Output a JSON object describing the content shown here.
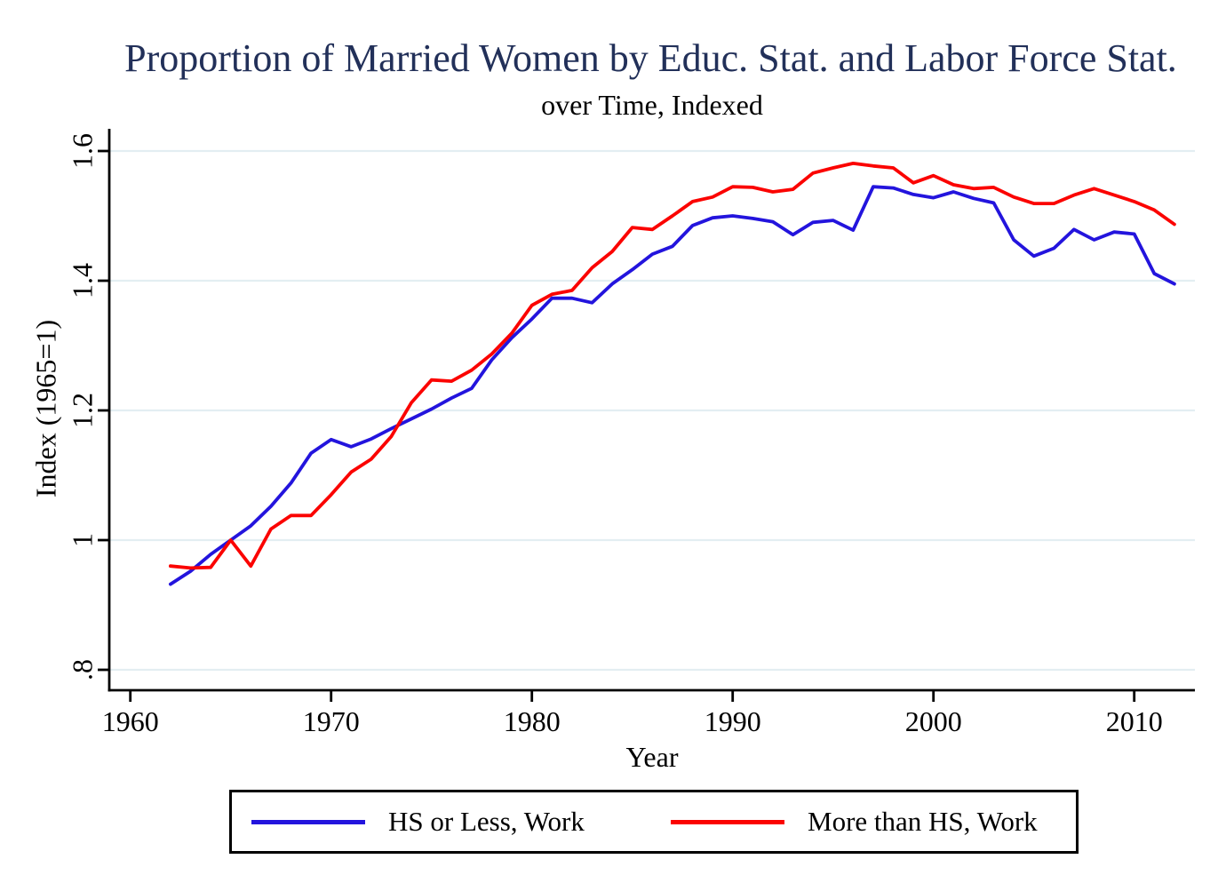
{
  "header": {
    "title": "Proportion of Married Women by Educ. Stat. and Labor Force Stat.",
    "subtitle": "over Time, Indexed"
  },
  "colors": {
    "title_text": "#223059",
    "axis": "#000000",
    "gridline": "#e3eef2",
    "hs_or_less": "#2314dd",
    "more_than_hs": "#fb0300"
  },
  "legend": {
    "items": [
      {
        "label": "HS or Less, Work",
        "series": "hs_or_less"
      },
      {
        "label": "More than HS, Work",
        "series": "more_than_hs"
      }
    ]
  },
  "chart_data": {
    "type": "line",
    "title": "Proportion of Married Women by Educ. Stat. and Labor Force Stat.",
    "subtitle": "over Time, Indexed",
    "xlabel": "Year",
    "ylabel": "Index (1965=1)",
    "grid": "horizontal",
    "legend_position": "bottom",
    "xlim": [
      1959,
      2013
    ],
    "ylim": [
      0.77,
      1.63
    ],
    "x_ticks": [
      1960,
      1970,
      1980,
      1990,
      2000,
      2010
    ],
    "y_tick_labels": [
      ".8",
      "1",
      "1.2",
      "1.4",
      "1.6"
    ],
    "y_tick_values": [
      0.8,
      1.0,
      1.2,
      1.4,
      1.6
    ],
    "x": [
      1962,
      1963,
      1964,
      1965,
      1966,
      1967,
      1968,
      1969,
      1970,
      1971,
      1972,
      1973,
      1974,
      1975,
      1976,
      1977,
      1978,
      1979,
      1980,
      1981,
      1982,
      1983,
      1984,
      1985,
      1986,
      1987,
      1988,
      1989,
      1990,
      1991,
      1992,
      1993,
      1994,
      1995,
      1996,
      1997,
      1998,
      1999,
      2000,
      2001,
      2002,
      2003,
      2004,
      2005,
      2006,
      2007,
      2008,
      2009,
      2010,
      2011,
      2012
    ],
    "series": [
      {
        "name": "HS or Less, Work",
        "color_key": "hs_or_less",
        "values": [
          0.932,
          0.952,
          0.978,
          1.0,
          1.022,
          1.052,
          1.088,
          1.134,
          1.155,
          1.144,
          1.156,
          1.172,
          1.187,
          1.202,
          1.219,
          1.234,
          1.278,
          1.312,
          1.341,
          1.373,
          1.373,
          1.366,
          1.395,
          1.417,
          1.441,
          1.453,
          1.485,
          1.497,
          1.5,
          1.496,
          1.491,
          1.471,
          1.49,
          1.493,
          1.478,
          1.545,
          1.543,
          1.533,
          1.528,
          1.537,
          1.527,
          1.52,
          1.463,
          1.438,
          1.45,
          1.479,
          1.463,
          1.475,
          1.472,
          1.411,
          1.395
        ]
      },
      {
        "name": "More than HS, Work",
        "color_key": "more_than_hs",
        "values": [
          0.96,
          0.957,
          0.958,
          1.0,
          0.96,
          1.017,
          1.038,
          1.038,
          1.07,
          1.105,
          1.125,
          1.16,
          1.212,
          1.247,
          1.245,
          1.262,
          1.287,
          1.319,
          1.362,
          1.379,
          1.385,
          1.42,
          1.445,
          1.482,
          1.479,
          1.5,
          1.522,
          1.529,
          1.545,
          1.544,
          1.537,
          1.541,
          1.566,
          1.574,
          1.581,
          1.577,
          1.574,
          1.551,
          1.562,
          1.548,
          1.542,
          1.544,
          1.529,
          1.519,
          1.519,
          1.532,
          1.542,
          1.532,
          1.522,
          1.509,
          1.487
        ]
      }
    ]
  }
}
